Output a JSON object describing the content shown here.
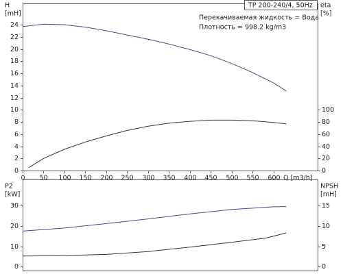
{
  "chart_data": [
    {
      "type": "line",
      "title": "TP 200-240/4, 50Hz",
      "annotations": [
        "Перекачиваемая жидкость = Вода",
        "Плотность = 998.2 kg/m3"
      ],
      "y_label": "H",
      "y_unit": "[mH]",
      "y2_label": "eta",
      "y2_unit": "[%]",
      "x_label": "Q [m3/h]",
      "xlim": [
        0,
        705
      ],
      "xticks": [
        0,
        50,
        100,
        150,
        200,
        250,
        300,
        350,
        400,
        450,
        500,
        550,
        600
      ],
      "ylim": [
        0,
        27.5
      ],
      "yticks": [
        0,
        2,
        4,
        6,
        8,
        10,
        12,
        14,
        16,
        18,
        20,
        22,
        24
      ],
      "y2lim": [
        0,
        275
      ],
      "y2ticks": [
        0,
        20,
        40,
        60,
        80,
        100
      ],
      "series": [
        {
          "color": "#3d4d80",
          "x": [
            0,
            50,
            100,
            150,
            200,
            250,
            300,
            350,
            400,
            450,
            500,
            550,
            600,
            630
          ],
          "values": [
            23.7,
            24.1,
            24.0,
            23.6,
            23.0,
            22.3,
            21.6,
            20.8,
            19.9,
            18.9,
            17.6,
            16.1,
            14.4,
            13.1
          ]
        },
        {
          "color": "#333333",
          "axis": "y2",
          "x": [
            15,
            50,
            100,
            150,
            200,
            250,
            300,
            350,
            400,
            450,
            500,
            550,
            600,
            630
          ],
          "values": [
            5,
            20,
            35,
            47,
            57,
            66,
            73,
            78,
            81,
            83,
            83,
            82,
            79,
            77
          ]
        }
      ]
    },
    {
      "type": "line",
      "y_label": "P2",
      "y_unit": "[kW]",
      "y2_label": "NPSH",
      "y2_unit": "[mH]",
      "xlim": [
        0,
        705
      ],
      "ylim": [
        -2,
        43
      ],
      "yticks": [
        0,
        10,
        20,
        30
      ],
      "y2lim": [
        -1,
        21.5
      ],
      "y2ticks": [
        0,
        5,
        10,
        15
      ],
      "series": [
        {
          "color": "#3d4d80",
          "x": [
            0,
            100,
            200,
            300,
            400,
            500,
            600,
            630
          ],
          "values": [
            17.5,
            19.0,
            21.2,
            23.5,
            26.0,
            28.2,
            29.5,
            29.6
          ]
        },
        {
          "color": "#333333",
          "axis": "y2",
          "x": [
            0,
            100,
            200,
            300,
            400,
            500,
            580,
            630
          ],
          "values": [
            2.6,
            2.7,
            3.0,
            3.7,
            4.8,
            6.0,
            7.0,
            8.3
          ]
        }
      ]
    }
  ]
}
